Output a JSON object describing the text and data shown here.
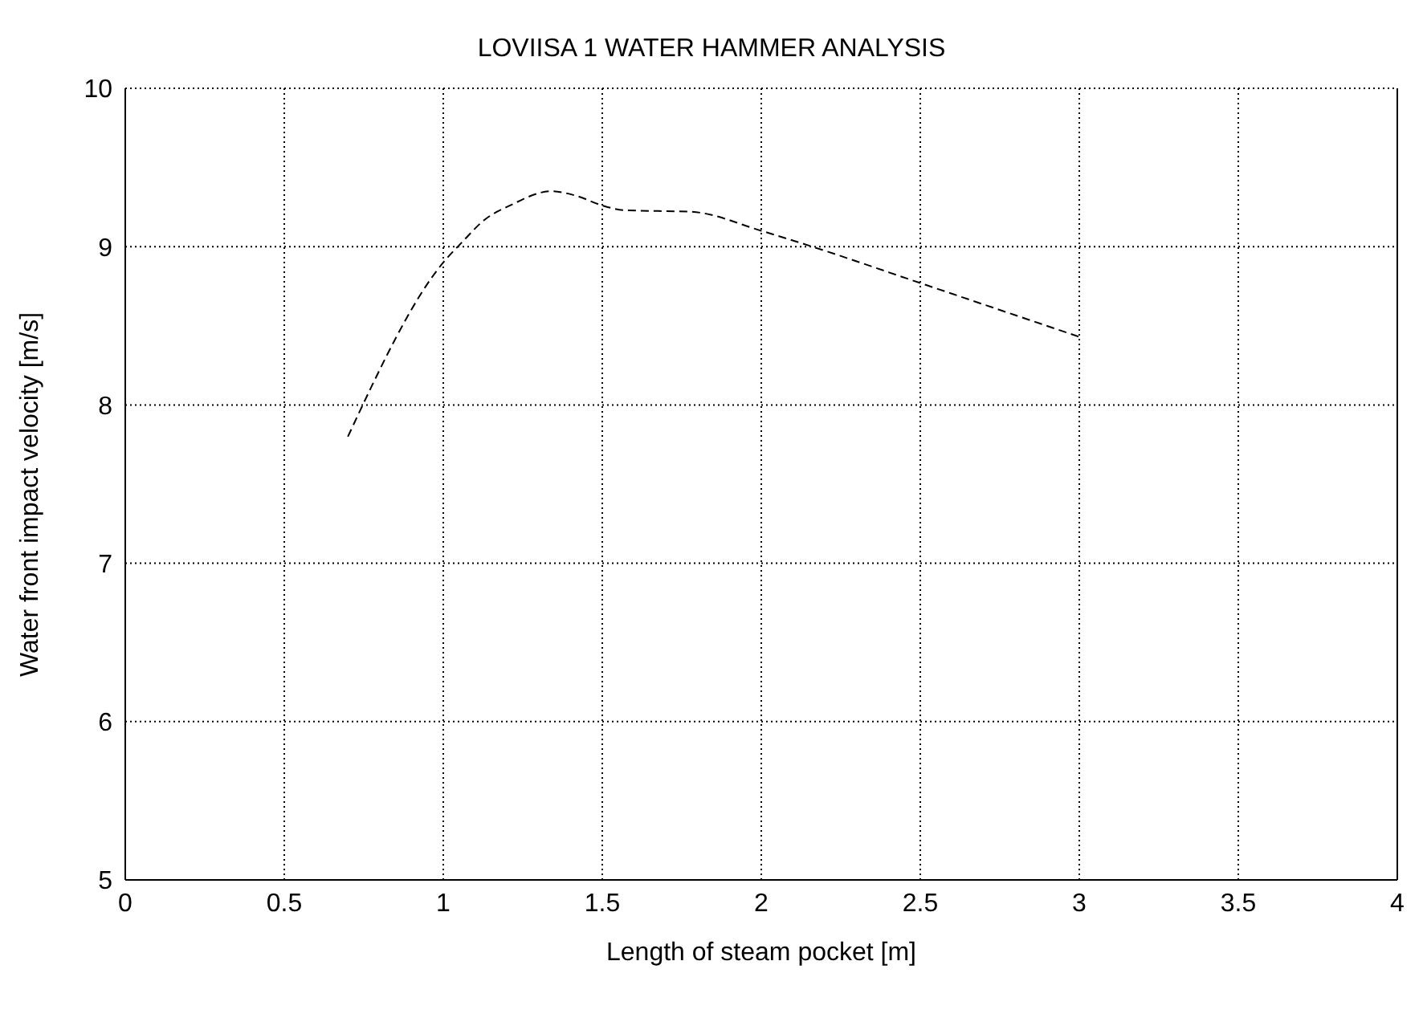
{
  "chart_data": {
    "type": "line",
    "title": "LOVIISA 1 WATER HAMMER ANALYSIS",
    "xlabel": "Length of steam pocket [m]",
    "ylabel": "Water front impact velocity [m/s]",
    "x": [
      0.7,
      1.0,
      1.06,
      1.13,
      1.21,
      1.34,
      1.42,
      1.5,
      1.57,
      1.78,
      2.0,
      2.16,
      2.5,
      3.0
    ],
    "series": [
      {
        "color": "#000000",
        "values": [
          7.8,
          8.9,
          9.03,
          9.17,
          9.26,
          9.35,
          9.32,
          9.26,
          9.23,
          9.22,
          9.1,
          9.0,
          8.77,
          8.43
        ]
      }
    ],
    "xlim": [
      0,
      4
    ],
    "xticks": [
      0,
      0.5,
      1,
      1.5,
      2,
      2.5,
      3,
      3.5,
      4
    ],
    "ylim": [
      5,
      10
    ],
    "yticks": [
      5,
      6,
      7,
      8,
      9,
      10
    ],
    "grid": true,
    "line_style": "dashed",
    "marker": "none"
  }
}
